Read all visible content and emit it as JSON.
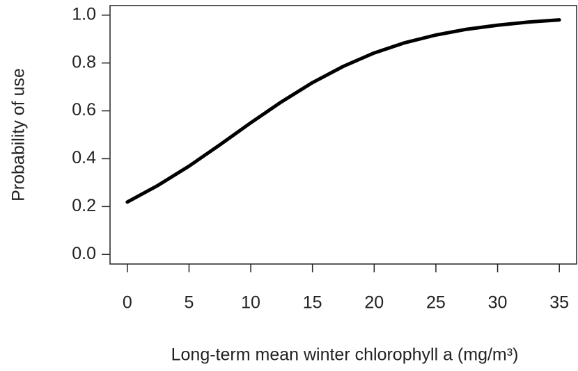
{
  "chart_data": {
    "type": "line",
    "x_label": "Long-term mean winter chlorophyll a (mg/m³)",
    "y_label": "Probability of use",
    "x": [
      0,
      2.5,
      5,
      7.5,
      10,
      12.5,
      15,
      17.5,
      20,
      22.5,
      25,
      27.5,
      30,
      32.5,
      35
    ],
    "series": [
      {
        "color": "#000000",
        "values": [
          0.219,
          0.289,
          0.369,
          0.458,
          0.55,
          0.638,
          0.718,
          0.786,
          0.842,
          0.885,
          0.917,
          0.941,
          0.958,
          0.971,
          0.98
        ]
      }
    ],
    "xlim": [
      -1.4,
      36.4
    ],
    "xticks": [
      0,
      5,
      10,
      15,
      20,
      25,
      30,
      35
    ],
    "ylim": [
      -0.04,
      1.04
    ],
    "yticks": [
      {
        "value": 0,
        "label": "0.0"
      },
      0.2,
      0.4,
      0.6,
      0.8,
      {
        "value": 1,
        "label": "1.0"
      }
    ],
    "grid": false
  }
}
